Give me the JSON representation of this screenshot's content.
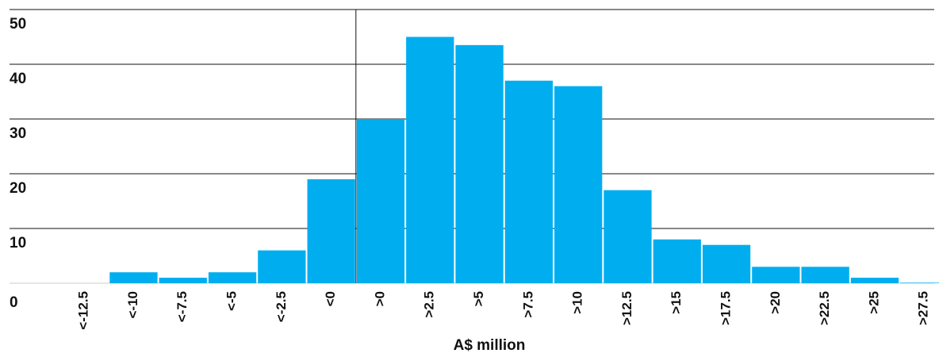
{
  "chart_data": {
    "type": "bar",
    "title": "",
    "xlabel": "A$ million",
    "ylabel": "",
    "ylim": [
      0,
      50
    ],
    "yticks": [
      "0",
      "10",
      "20",
      "30",
      "40",
      "50"
    ],
    "grid": true,
    "categories": [
      "<-12.5",
      "<-10",
      "<-7.5",
      "<-5",
      "<-2.5",
      "<0",
      ">0",
      ">2.5",
      ">5",
      ">7.5",
      ">10",
      ">12.5",
      ">15",
      ">17.5",
      ">20",
      ">22.5",
      ">25",
      ">27.5"
    ],
    "values": [
      0,
      2,
      1,
      2,
      6,
      19,
      30,
      45,
      43.5,
      37,
      36,
      17,
      8,
      7,
      3,
      3,
      1,
      0.1
    ],
    "bar_color": "#00AEEF",
    "grid_color": "#111111"
  }
}
